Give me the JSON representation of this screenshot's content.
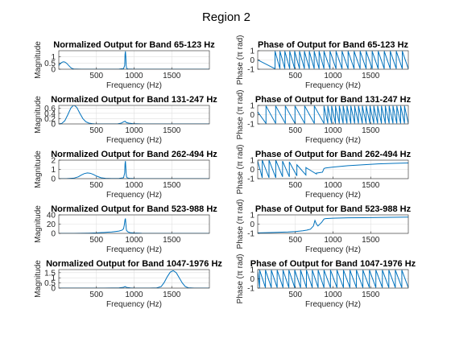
{
  "figure": {
    "suptitle": "Region 2"
  },
  "chart_data": [
    {
      "type": "line",
      "title": "Normalized Output for Band 65-123 Hz",
      "xlabel": "Frequency (Hz)",
      "ylabel": "Magnitude",
      "xlim": [
        0,
        2000
      ],
      "ylim": [
        0,
        1.5
      ],
      "xticks": [
        500,
        1000,
        1500
      ],
      "yticks": [
        0,
        0.5,
        1
      ],
      "ytick_labels": [
        "0",
        "0.5",
        "1"
      ],
      "grid": true,
      "series": [
        {
          "kind": "magnitude",
          "x": [
            0,
            20,
            40,
            60,
            80,
            100,
            120,
            140,
            160,
            180,
            200,
            240,
            300,
            500,
            700,
            800,
            860,
            875,
            880,
            885,
            890,
            895,
            900,
            905,
            920,
            1000,
            1500,
            2000
          ],
          "y": [
            0.3,
            0.45,
            0.55,
            0.6,
            0.58,
            0.5,
            0.38,
            0.25,
            0.12,
            0.05,
            0.02,
            0.01,
            0.0,
            0.0,
            0.0,
            0.01,
            0.05,
            0.3,
            1.2,
            1.45,
            1.0,
            0.3,
            0.1,
            0.04,
            0.02,
            0.0,
            0.0,
            0.0
          ]
        }
      ]
    },
    {
      "type": "line",
      "title": "Phase of Output for Band 65-123 Hz",
      "xlabel": "Frequency (Hz)",
      "ylabel": "Phase (π rad)",
      "xlim": [
        0,
        2000
      ],
      "ylim": [
        -1,
        1
      ],
      "xticks": [
        500,
        1000,
        1500
      ],
      "yticks": [
        -1,
        0,
        1
      ],
      "ytick_labels": [
        "-1",
        "0",
        "1"
      ],
      "grid": true,
      "series": [
        {
          "kind": "sawtooth",
          "start": 0,
          "first_wrap": 230,
          "periods": [
            [
              230,
              880,
              10
            ],
            [
              880,
              2000,
              14
            ]
          ],
          "dir": "down"
        }
      ]
    },
    {
      "type": "line",
      "title": "Normalized Output for Band 131-247 Hz",
      "xlabel": "Frequency (Hz)",
      "ylabel": "Magnitude",
      "xlim": [
        0,
        2000
      ],
      "ylim": [
        0,
        0.7
      ],
      "xticks": [
        500,
        1000,
        1500
      ],
      "yticks": [
        0,
        0.2,
        0.4,
        0.6
      ],
      "ytick_labels": [
        "0",
        "0.2",
        "0.4",
        "0.6"
      ],
      "grid": true,
      "series": [
        {
          "kind": "magnitude",
          "x": [
            0,
            40,
            80,
            120,
            160,
            200,
            240,
            280,
            320,
            360,
            400,
            440,
            480,
            600,
            780,
            830,
            860,
            880,
            900,
            930,
            980,
            1100,
            2000
          ],
          "y": [
            0.0,
            0.02,
            0.12,
            0.35,
            0.6,
            0.72,
            0.62,
            0.4,
            0.2,
            0.08,
            0.03,
            0.01,
            0.0,
            0.0,
            0.0,
            0.03,
            0.08,
            0.1,
            0.05,
            0.03,
            0.01,
            0.0,
            0.0
          ]
        }
      ]
    },
    {
      "type": "line",
      "title": "Phase of Output for Band 131-247 Hz",
      "xlabel": "Frequency (Hz)",
      "ylabel": "Phase (π rad)",
      "xlim": [
        0,
        2000
      ],
      "ylim": [
        -1,
        1
      ],
      "xticks": [
        500,
        1000,
        1500
      ],
      "yticks": [
        -1,
        0,
        1
      ],
      "ytick_labels": [
        "-1",
        "0",
        "1"
      ],
      "grid": true,
      "series": [
        {
          "kind": "sawtooth",
          "start": 0.3,
          "first_wrap": 110,
          "periods": [
            [
              110,
              880,
              6
            ],
            [
              880,
              2000,
              22
            ]
          ],
          "dir": "down"
        }
      ]
    },
    {
      "type": "line",
      "title": "Normalized Output for Band 262-494 Hz",
      "xlabel": "Frequency (Hz)",
      "ylabel": "Magnitude",
      "xlim": [
        0,
        2000
      ],
      "ylim": [
        0,
        2
      ],
      "xticks": [
        500,
        1000,
        1500
      ],
      "yticks": [
        0,
        1,
        2
      ],
      "ytick_labels": [
        "0",
        "1",
        "2"
      ],
      "grid": true,
      "series": [
        {
          "kind": "magnitude",
          "x": [
            0,
            100,
            200,
            260,
            300,
            340,
            380,
            420,
            460,
            500,
            560,
            620,
            700,
            800,
            860,
            875,
            880,
            885,
            890,
            895,
            900,
            910,
            940,
            1000,
            2000
          ],
          "y": [
            0.0,
            0.0,
            0.05,
            0.2,
            0.4,
            0.55,
            0.62,
            0.58,
            0.45,
            0.28,
            0.1,
            0.03,
            0.01,
            0.02,
            0.1,
            0.6,
            1.6,
            1.9,
            1.2,
            0.5,
            0.2,
            0.08,
            0.03,
            0.01,
            0.0
          ]
        }
      ]
    },
    {
      "type": "line",
      "title": "Phase of Output for Band 262-494 Hz",
      "xlabel": "Frequency (Hz)",
      "ylabel": "Phase (π rad)",
      "xlim": [
        0,
        2000
      ],
      "ylim": [
        -1,
        1
      ],
      "xticks": [
        500,
        1000,
        1500
      ],
      "yticks": [
        -1,
        0,
        1
      ],
      "ytick_labels": [
        "-1",
        "0",
        "1"
      ],
      "grid": true,
      "series": [
        {
          "kind": "polyline",
          "x": [
            0,
            60,
            60,
            150,
            150,
            240,
            240,
            330,
            330,
            420,
            420,
            520,
            520,
            640,
            640,
            780,
            780,
            860,
            880,
            900,
            1000,
            1200,
            1400,
            1600,
            1800,
            2000
          ],
          "y": [
            0.9,
            -0.9,
            1.0,
            -0.9,
            1.0,
            -0.9,
            1.0,
            -0.8,
            0.9,
            -0.8,
            0.8,
            -0.7,
            0.5,
            -0.6,
            0.2,
            -0.5,
            -0.4,
            -0.3,
            0.1,
            0.15,
            0.25,
            0.4,
            0.5,
            0.6,
            0.65,
            0.7
          ]
        }
      ]
    },
    {
      "type": "line",
      "title": "Normalized Output for Band 523-988 Hz",
      "xlabel": "Frequency (Hz)",
      "ylabel": "Magnitude",
      "xlim": [
        0,
        2000
      ],
      "ylim": [
        0,
        40
      ],
      "xticks": [
        500,
        1000,
        1500
      ],
      "yticks": [
        0,
        20,
        40
      ],
      "ytick_labels": [
        "0",
        "20",
        "40"
      ],
      "grid": true,
      "series": [
        {
          "kind": "magnitude",
          "x": [
            0,
            200,
            400,
            500,
            600,
            650,
            700,
            750,
            800,
            840,
            860,
            870,
            880,
            885,
            890,
            895,
            900,
            920,
            950,
            1000,
            1100,
            1300,
            2000
          ],
          "y": [
            0.0,
            0.0,
            0.5,
            1.0,
            2.0,
            2.5,
            3.0,
            4.0,
            5.0,
            7.0,
            10.0,
            18.0,
            30.0,
            32.0,
            22.0,
            12.0,
            6.0,
            3.0,
            1.5,
            0.8,
            0.3,
            0.1,
            0.0
          ]
        }
      ]
    },
    {
      "type": "line",
      "title": "Phase of Output for Band 523-988 Hz",
      "xlabel": "Frequency (Hz)",
      "ylabel": "Phase (π rad)",
      "xlim": [
        0,
        2000
      ],
      "ylim": [
        -1,
        1
      ],
      "xticks": [
        500,
        1000,
        1500
      ],
      "yticks": [
        -1,
        0,
        1
      ],
      "ytick_labels": [
        "-1",
        "0",
        "1"
      ],
      "grid": true,
      "series": [
        {
          "kind": "polyline",
          "x": [
            0,
            200,
            400,
            500,
            600,
            650,
            700,
            740,
            760,
            780,
            800,
            850,
            880,
            900,
            950,
            1000,
            1200,
            1400,
            1600,
            1800,
            2000
          ],
          "y": [
            -0.95,
            -0.9,
            -0.85,
            -0.8,
            -0.72,
            -0.65,
            -0.55,
            -0.2,
            0.4,
            0.0,
            -0.2,
            0.2,
            0.55,
            0.6,
            0.62,
            0.64,
            0.68,
            0.7,
            0.72,
            0.74,
            0.76
          ]
        }
      ]
    },
    {
      "type": "line",
      "title": "Normalized Output for Band 1047-1976 Hz",
      "xlabel": "Frequency (Hz)",
      "ylabel": "Magnitude",
      "xlim": [
        0,
        2000
      ],
      "ylim": [
        0,
        1.8
      ],
      "xticks": [
        500,
        1000,
        1500
      ],
      "yticks": [
        0,
        0.5,
        1,
        1.5
      ],
      "ytick_labels": [
        "0",
        "0.5",
        "1",
        "1.5"
      ],
      "grid": true,
      "series": [
        {
          "kind": "magnitude",
          "x": [
            0,
            600,
            800,
            860,
            880,
            900,
            950,
            1000,
            1200,
            1300,
            1360,
            1400,
            1440,
            1480,
            1520,
            1560,
            1600,
            1640,
            1680,
            1720,
            1800,
            2000
          ],
          "y": [
            0.0,
            0.0,
            0.02,
            0.08,
            0.15,
            0.07,
            0.02,
            0.0,
            0.0,
            0.02,
            0.15,
            0.55,
            1.1,
            1.55,
            1.7,
            1.5,
            1.0,
            0.5,
            0.15,
            0.03,
            0.0,
            0.0
          ]
        }
      ]
    },
    {
      "type": "line",
      "title": "Phase of Output for Band 1047-1976 Hz",
      "xlabel": "Frequency (Hz)",
      "ylabel": "Phase (π rad)",
      "xlim": [
        0,
        2000
      ],
      "ylim": [
        -1,
        1
      ],
      "xticks": [
        500,
        1000,
        1500
      ],
      "yticks": [
        -1,
        0,
        1
      ],
      "ytick_labels": [
        "-1",
        "0",
        "1"
      ],
      "grid": true,
      "series": [
        {
          "kind": "sawtooth",
          "start": 0.8,
          "first_wrap": 25,
          "periods": [
            [
              25,
              880,
              11
            ],
            [
              880,
              2000,
              13
            ]
          ],
          "dir": "down"
        }
      ]
    }
  ]
}
